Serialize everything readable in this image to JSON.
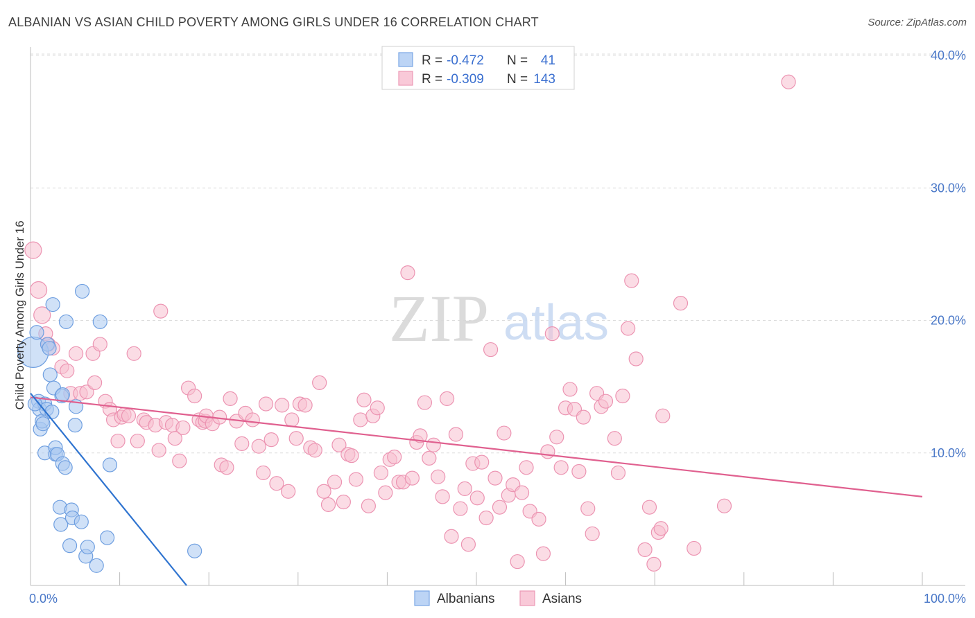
{
  "title": "ALBANIAN VS ASIAN CHILD POVERTY AMONG GIRLS UNDER 16 CORRELATION CHART",
  "source": "Source: ZipAtlas.com",
  "watermark": {
    "zip": "ZIP",
    "atlas": "atlas"
  },
  "legend": {
    "rows": [
      {
        "r_label": "R =",
        "r_value": "-0.472",
        "n_label": "N =",
        "n_value": "41"
      },
      {
        "r_label": "R =",
        "r_value": "-0.309",
        "n_label": "N =",
        "n_value": "143"
      }
    ]
  },
  "bottom_legend": [
    "Albanians",
    "Asians"
  ],
  "colors": {
    "albanians_fill": "#a9c8f0",
    "albanians_stroke": "#6f9fe0",
    "albanians_line": "#2f74d0",
    "asians_fill": "#f7bfd0",
    "asians_stroke": "#ec94b2",
    "asians_line": "#e0608f",
    "grid": "#dcdcdc",
    "tick_label": "#4a78c8"
  },
  "chart_data": {
    "type": "scatter",
    "xlabel": "",
    "ylabel": "Child Poverty Among Girls Under 16",
    "xlim": [
      0,
      100
    ],
    "ylim": [
      0,
      40
    ],
    "x_tick_labels": [
      "0.0%",
      "100.0%"
    ],
    "y_ticks": [
      10,
      20,
      30,
      40
    ],
    "y_tick_labels": [
      "10.0%",
      "20.0%",
      "30.0%",
      "40.0%"
    ],
    "grid": true,
    "series": [
      {
        "name": "Albanians",
        "r": -0.472,
        "n": 41,
        "trend": {
          "x": [
            0,
            17.5
          ],
          "y": [
            14.5,
            0
          ]
        },
        "points": [
          [
            0.3,
            17.6,
            22
          ],
          [
            0.7,
            19.1,
            10
          ],
          [
            0.9,
            13.9,
            10
          ],
          [
            1.0,
            13.3,
            10
          ],
          [
            1.1,
            11.8,
            10
          ],
          [
            1.3,
            12.4,
            10
          ],
          [
            1.4,
            12.2,
            10
          ],
          [
            1.6,
            13.7,
            10
          ],
          [
            1.6,
            10.0,
            10
          ],
          [
            1.8,
            13.3,
            10
          ],
          [
            1.9,
            18.2,
            10
          ],
          [
            2.1,
            17.9,
            10
          ],
          [
            2.2,
            15.9,
            10
          ],
          [
            2.4,
            13.1,
            10
          ],
          [
            2.5,
            21.2,
            10
          ],
          [
            2.6,
            14.9,
            10
          ],
          [
            2.8,
            9.9,
            10
          ],
          [
            2.8,
            10.4,
            10
          ],
          [
            3.0,
            9.9,
            10
          ],
          [
            3.3,
            5.9,
            10
          ],
          [
            3.4,
            4.6,
            10
          ],
          [
            3.5,
            14.3,
            10
          ],
          [
            3.6,
            14.4,
            10
          ],
          [
            3.6,
            9.2,
            10
          ],
          [
            3.9,
            8.9,
            10
          ],
          [
            4.0,
            19.9,
            10
          ],
          [
            4.4,
            3.0,
            10
          ],
          [
            4.6,
            5.7,
            10
          ],
          [
            4.7,
            5.1,
            10
          ],
          [
            5.0,
            12.1,
            10
          ],
          [
            5.1,
            13.5,
            10
          ],
          [
            5.7,
            4.8,
            10
          ],
          [
            5.8,
            22.2,
            10
          ],
          [
            6.2,
            2.2,
            10
          ],
          [
            6.4,
            2.9,
            10
          ],
          [
            7.4,
            1.5,
            10
          ],
          [
            7.8,
            19.9,
            10
          ],
          [
            8.6,
            3.6,
            10
          ],
          [
            8.9,
            9.1,
            10
          ],
          [
            18.4,
            2.6,
            10
          ],
          [
            0.5,
            13.7,
            10
          ]
        ]
      },
      {
        "name": "Asians",
        "r": -0.309,
        "n": 143,
        "trend": {
          "x": [
            0,
            100
          ],
          "y": [
            14.2,
            6.7
          ]
        },
        "points": [
          [
            0.3,
            25.3,
            12
          ],
          [
            0.9,
            22.3,
            12
          ],
          [
            1.3,
            20.4,
            12
          ],
          [
            1.7,
            19.0,
            10
          ],
          [
            2.0,
            18.2,
            10
          ],
          [
            2.5,
            17.9,
            10
          ],
          [
            3.5,
            16.5,
            10
          ],
          [
            4.1,
            16.2,
            10
          ],
          [
            4.5,
            14.5,
            10
          ],
          [
            5.1,
            17.5,
            10
          ],
          [
            5.6,
            14.5,
            10
          ],
          [
            6.3,
            14.6,
            10
          ],
          [
            7.0,
            17.5,
            10
          ],
          [
            7.2,
            15.3,
            10
          ],
          [
            7.8,
            18.2,
            10
          ],
          [
            8.4,
            13.9,
            10
          ],
          [
            8.9,
            13.3,
            10
          ],
          [
            9.3,
            12.5,
            10
          ],
          [
            9.8,
            10.9,
            10
          ],
          [
            10.2,
            12.7,
            10
          ],
          [
            10.5,
            12.9,
            10
          ],
          [
            11.0,
            12.8,
            10
          ],
          [
            11.6,
            17.5,
            10
          ],
          [
            12.0,
            10.9,
            10
          ],
          [
            12.7,
            12.5,
            10
          ],
          [
            13.0,
            12.3,
            10
          ],
          [
            14.0,
            12.1,
            10
          ],
          [
            14.4,
            10.2,
            10
          ],
          [
            14.6,
            20.7,
            10
          ],
          [
            15.2,
            12.3,
            10
          ],
          [
            15.9,
            12.1,
            10
          ],
          [
            16.2,
            11.1,
            10
          ],
          [
            16.7,
            9.4,
            10
          ],
          [
            17.1,
            11.9,
            10
          ],
          [
            17.7,
            14.9,
            10
          ],
          [
            18.4,
            14.3,
            10
          ],
          [
            18.9,
            12.5,
            10
          ],
          [
            19.3,
            12.3,
            10
          ],
          [
            19.6,
            12.4,
            10
          ],
          [
            19.7,
            12.8,
            10
          ],
          [
            20.4,
            12.2,
            10
          ],
          [
            21.2,
            12.7,
            10
          ],
          [
            21.4,
            9.1,
            10
          ],
          [
            22.0,
            8.9,
            10
          ],
          [
            22.4,
            14.1,
            10
          ],
          [
            23.1,
            12.4,
            10
          ],
          [
            23.7,
            10.7,
            10
          ],
          [
            24.1,
            13.0,
            10
          ],
          [
            24.9,
            12.5,
            10
          ],
          [
            25.6,
            10.5,
            10
          ],
          [
            26.1,
            8.5,
            10
          ],
          [
            26.4,
            13.7,
            10
          ],
          [
            27.0,
            11.0,
            10
          ],
          [
            27.6,
            7.7,
            10
          ],
          [
            28.2,
            13.6,
            10
          ],
          [
            28.9,
            7.1,
            10
          ],
          [
            29.3,
            12.5,
            10
          ],
          [
            29.8,
            11.1,
            10
          ],
          [
            30.2,
            13.7,
            10
          ],
          [
            30.8,
            13.6,
            10
          ],
          [
            31.4,
            10.4,
            10
          ],
          [
            31.9,
            10.2,
            10
          ],
          [
            32.4,
            15.3,
            10
          ],
          [
            32.9,
            7.1,
            10
          ],
          [
            33.4,
            6.1,
            10
          ],
          [
            34.1,
            7.8,
            10
          ],
          [
            34.6,
            10.6,
            10
          ],
          [
            35.1,
            6.3,
            10
          ],
          [
            35.6,
            9.9,
            10
          ],
          [
            36.0,
            9.8,
            10
          ],
          [
            36.5,
            8.0,
            10
          ],
          [
            37.0,
            12.5,
            10
          ],
          [
            37.4,
            14.0,
            10
          ],
          [
            37.9,
            6.0,
            10
          ],
          [
            38.4,
            12.8,
            10
          ],
          [
            38.9,
            13.4,
            10
          ],
          [
            39.3,
            8.5,
            10
          ],
          [
            39.8,
            7.0,
            10
          ],
          [
            40.3,
            9.5,
            10
          ],
          [
            40.8,
            9.7,
            10
          ],
          [
            41.3,
            7.8,
            10
          ],
          [
            41.8,
            7.8,
            10
          ],
          [
            42.3,
            23.6,
            10
          ],
          [
            42.8,
            8.1,
            10
          ],
          [
            43.3,
            10.8,
            10
          ],
          [
            43.7,
            11.3,
            10
          ],
          [
            44.2,
            13.8,
            10
          ],
          [
            44.7,
            9.6,
            10
          ],
          [
            45.2,
            10.6,
            10
          ],
          [
            45.7,
            8.2,
            10
          ],
          [
            46.2,
            6.7,
            10
          ],
          [
            46.7,
            14.1,
            10
          ],
          [
            47.2,
            3.7,
            10
          ],
          [
            47.7,
            11.4,
            10
          ],
          [
            48.2,
            5.8,
            10
          ],
          [
            48.7,
            7.3,
            10
          ],
          [
            49.1,
            3.1,
            10
          ],
          [
            49.6,
            9.2,
            10
          ],
          [
            50.1,
            6.6,
            10
          ],
          [
            50.6,
            9.3,
            10
          ],
          [
            51.1,
            5.1,
            10
          ],
          [
            51.6,
            17.8,
            10
          ],
          [
            52.1,
            8.1,
            10
          ],
          [
            52.6,
            5.9,
            10
          ],
          [
            53.1,
            11.5,
            10
          ],
          [
            53.6,
            6.8,
            10
          ],
          [
            54.1,
            7.6,
            10
          ],
          [
            54.6,
            1.8,
            10
          ],
          [
            55.1,
            7.0,
            10
          ],
          [
            55.6,
            8.9,
            10
          ],
          [
            56.0,
            5.6,
            10
          ],
          [
            57.0,
            5.0,
            10
          ],
          [
            57.5,
            2.4,
            10
          ],
          [
            58.0,
            10.1,
            10
          ],
          [
            58.5,
            19.0,
            10
          ],
          [
            59.0,
            11.2,
            10
          ],
          [
            59.5,
            8.9,
            10
          ],
          [
            60.0,
            13.4,
            10
          ],
          [
            60.5,
            14.8,
            10
          ],
          [
            61.0,
            13.3,
            10
          ],
          [
            61.5,
            8.6,
            10
          ],
          [
            62.0,
            12.7,
            10
          ],
          [
            62.5,
            5.8,
            10
          ],
          [
            63.0,
            3.9,
            10
          ],
          [
            63.5,
            14.5,
            10
          ],
          [
            64.0,
            13.5,
            10
          ],
          [
            64.5,
            13.9,
            10
          ],
          [
            65.5,
            11.1,
            10
          ],
          [
            65.9,
            8.5,
            10
          ],
          [
            66.4,
            14.3,
            10
          ],
          [
            67.0,
            19.4,
            10
          ],
          [
            67.4,
            23.0,
            10
          ],
          [
            67.9,
            17.1,
            10
          ],
          [
            68.9,
            2.7,
            10
          ],
          [
            69.4,
            5.9,
            10
          ],
          [
            69.9,
            1.6,
            10
          ],
          [
            70.4,
            4.0,
            10
          ],
          [
            70.7,
            4.3,
            10
          ],
          [
            70.9,
            12.8,
            10
          ],
          [
            72.9,
            21.3,
            10
          ],
          [
            74.4,
            2.8,
            10
          ],
          [
            77.8,
            6.0,
            10
          ],
          [
            85.0,
            38.0,
            10
          ]
        ]
      }
    ]
  }
}
